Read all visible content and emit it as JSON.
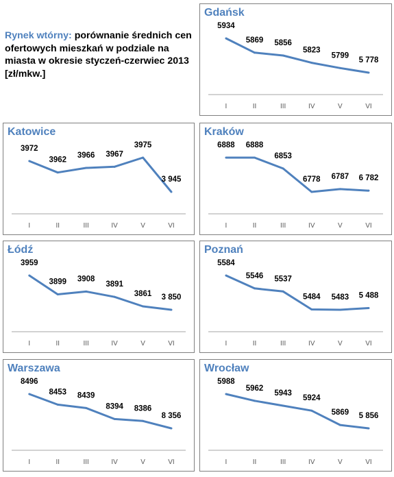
{
  "intro": {
    "accent": "Rynek wtórny:",
    "text": " porównanie średnich cen ofertowych mieszkań w podziale na miasta w okresie styczeń-czerwiec 2013 [zł/mkw.]"
  },
  "colors": {
    "line": "#4f81bd",
    "title": "#4f81bd",
    "axis": "#a6a6a6",
    "border": "#7f7f7f"
  },
  "chart_data": [
    {
      "type": "line",
      "title": "Gdańsk",
      "categories": [
        "I",
        "II",
        "III",
        "IV",
        "V",
        "VI"
      ],
      "values": [
        5934,
        5869,
        5856,
        5823,
        5799,
        5778
      ],
      "labels": [
        "5934",
        "5869",
        "5856",
        "5823",
        "5799",
        "5 778"
      ]
    },
    {
      "type": "line",
      "title": "Katowice",
      "categories": [
        "I",
        "II",
        "III",
        "IV",
        "V",
        "VI"
      ],
      "values": [
        3972,
        3962,
        3966,
        3967,
        3975,
        3945
      ],
      "labels": [
        "3972",
        "3962",
        "3966",
        "3967",
        "3975",
        "3 945"
      ]
    },
    {
      "type": "line",
      "title": "Kraków",
      "categories": [
        "I",
        "II",
        "III",
        "IV",
        "V",
        "VI"
      ],
      "values": [
        6888,
        6888,
        6853,
        6778,
        6787,
        6782
      ],
      "labels": [
        "6888",
        "6888",
        "6853",
        "6778",
        "6787",
        "6 782"
      ]
    },
    {
      "type": "line",
      "title": "Łódź",
      "categories": [
        "I",
        "II",
        "III",
        "IV",
        "V",
        "VI"
      ],
      "values": [
        3959,
        3899,
        3908,
        3891,
        3861,
        3850
      ],
      "labels": [
        "3959",
        "3899",
        "3908",
        "3891",
        "3861",
        "3 850"
      ]
    },
    {
      "type": "line",
      "title": "Poznań",
      "categories": [
        "I",
        "II",
        "III",
        "IV",
        "V",
        "VI"
      ],
      "values": [
        5584,
        5546,
        5537,
        5484,
        5483,
        5488
      ],
      "labels": [
        "5584",
        "5546",
        "5537",
        "5484",
        "5483",
        "5 488"
      ]
    },
    {
      "type": "line",
      "title": "Warszawa",
      "categories": [
        "I",
        "II",
        "III",
        "IV",
        "V",
        "VI"
      ],
      "values": [
        8496,
        8453,
        8439,
        8394,
        8386,
        8356
      ],
      "labels": [
        "8496",
        "8453",
        "8439",
        "8394",
        "8386",
        "8 356"
      ]
    },
    {
      "type": "line",
      "title": "Wrocław",
      "categories": [
        "I",
        "II",
        "III",
        "IV",
        "V",
        "VI"
      ],
      "values": [
        5988,
        5962,
        5943,
        5924,
        5869,
        5856
      ],
      "labels": [
        "5988",
        "5962",
        "5943",
        "5924",
        "5869",
        "5 856"
      ]
    }
  ]
}
